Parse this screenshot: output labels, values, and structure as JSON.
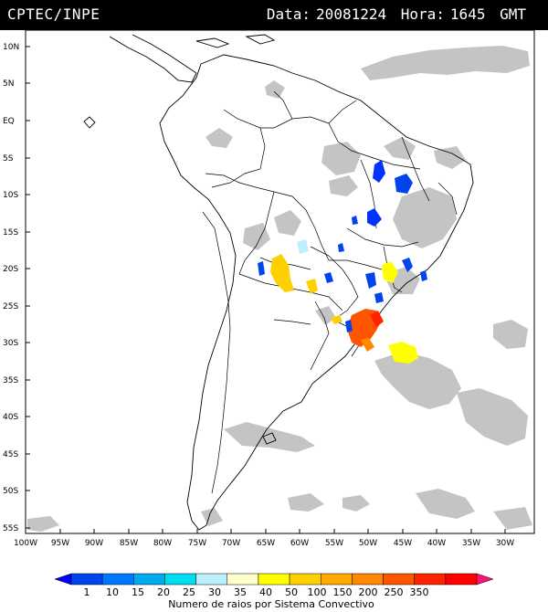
{
  "header": {
    "source": "CPTEC/INPE",
    "date_label": "Data:",
    "date_value": "20081224",
    "time_label": "Hora:",
    "time_value": "1645",
    "tz": "GMT"
  },
  "axes": {
    "lat_labels": [
      "10N",
      "5N",
      "EQ",
      "5S",
      "10S",
      "15S",
      "20S",
      "25S",
      "30S",
      "35S",
      "40S",
      "45S",
      "50S",
      "55S"
    ],
    "lon_labels": [
      "100W",
      "95W",
      "90W",
      "85W",
      "80W",
      "75W",
      "70W",
      "65W",
      "60W",
      "55W",
      "50W",
      "45W",
      "40W",
      "35W",
      "30W"
    ]
  },
  "legend": {
    "ticks": [
      "1",
      "10",
      "15",
      "20",
      "25",
      "30",
      "35",
      "40",
      "50",
      "100",
      "150",
      "200",
      "250",
      "350"
    ],
    "colors": [
      "#0000ff",
      "#0044ee",
      "#0077ff",
      "#00aaee",
      "#00ddee",
      "#bbf0ff",
      "#ffffcc",
      "#ffff00",
      "#ffd000",
      "#ffaa00",
      "#ff8800",
      "#ff5500",
      "#ff2200",
      "#ff0000",
      "#ff1177"
    ],
    "title": "Numero de raios por Sistema Convectivo"
  },
  "colors": {
    "cloud": "#c0c0c0",
    "coast": "#000000",
    "frame": "#000000"
  }
}
